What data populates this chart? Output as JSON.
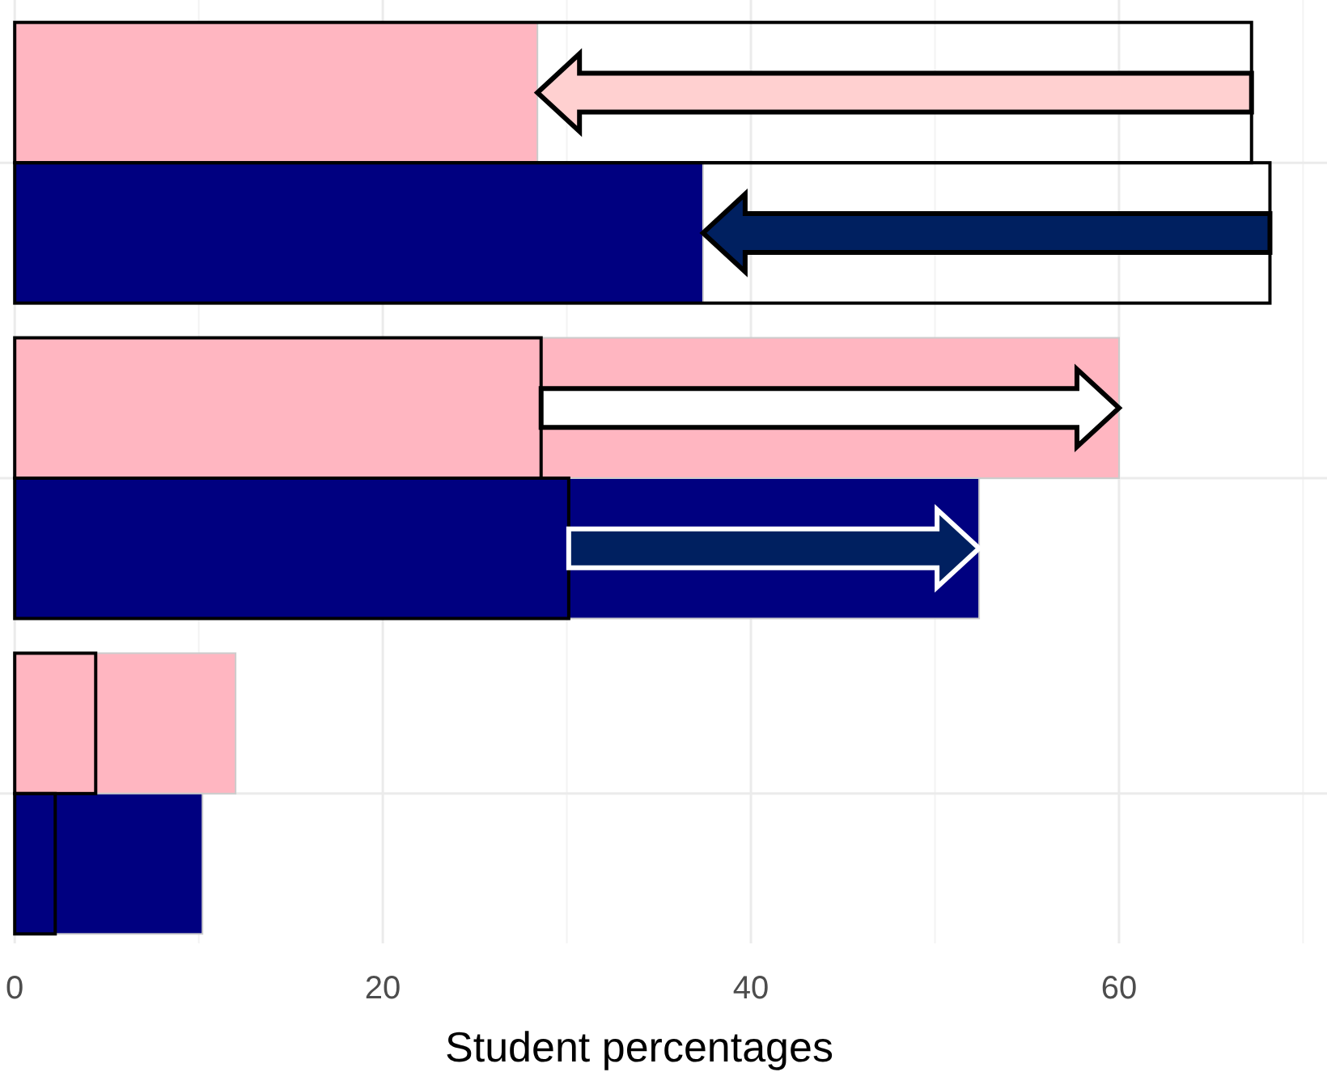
{
  "chart_data": {
    "type": "bar",
    "orientation": "horizontal",
    "xlabel": "Student percentages",
    "categories": [
      null,
      null,
      null
    ],
    "series": [
      {
        "color": "#ffb6c1",
        "values": [
          28.4,
          60.0,
          12.0
        ]
      },
      {
        "color": "#000080",
        "values": [
          37.4,
          52.4,
          10.2
        ]
      },
      {
        "color": "#000000",
        "values": [
          67.2,
          28.6,
          4.4
        ]
      },
      {
        "color": "#000000",
        "values": [
          68.2,
          30.1,
          2.2
        ]
      }
    ],
    "xlim": [
      -0.8,
      71.3
    ],
    "xticks": [
      0,
      20,
      40,
      60
    ],
    "grid": true
  }
}
